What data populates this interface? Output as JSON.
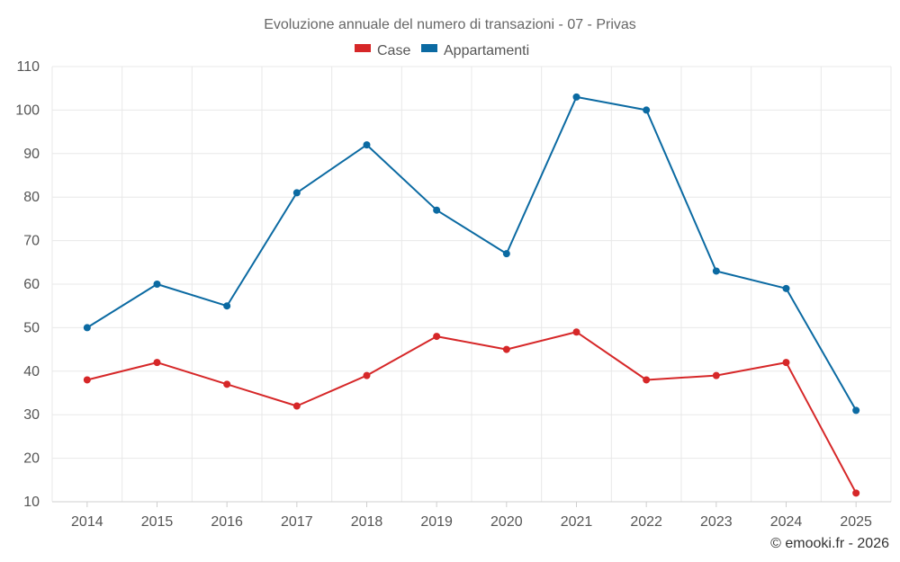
{
  "chart_data": {
    "type": "line",
    "title": "Evoluzione annuale del numero di transazioni - 07 - Privas",
    "categories": [
      "2014",
      "2015",
      "2016",
      "2017",
      "2018",
      "2019",
      "2020",
      "2021",
      "2022",
      "2023",
      "2024",
      "2025"
    ],
    "series": [
      {
        "name": "Case",
        "color": "#d62728",
        "values": [
          38,
          42,
          37,
          32,
          39,
          48,
          45,
          49,
          38,
          39,
          42,
          12
        ]
      },
      {
        "name": "Appartamenti",
        "color": "#0b6aa2",
        "values": [
          50,
          60,
          55,
          81,
          92,
          77,
          67,
          103,
          100,
          63,
          59,
          31
        ]
      }
    ],
    "y_ticks": [
      10,
      20,
      30,
      40,
      50,
      60,
      70,
      80,
      90,
      100,
      110
    ],
    "ylim": [
      10,
      110
    ],
    "xlabel": "",
    "ylabel": "",
    "grid": true,
    "legend": "top-center"
  },
  "credit": "© emooki.fr - 2026"
}
